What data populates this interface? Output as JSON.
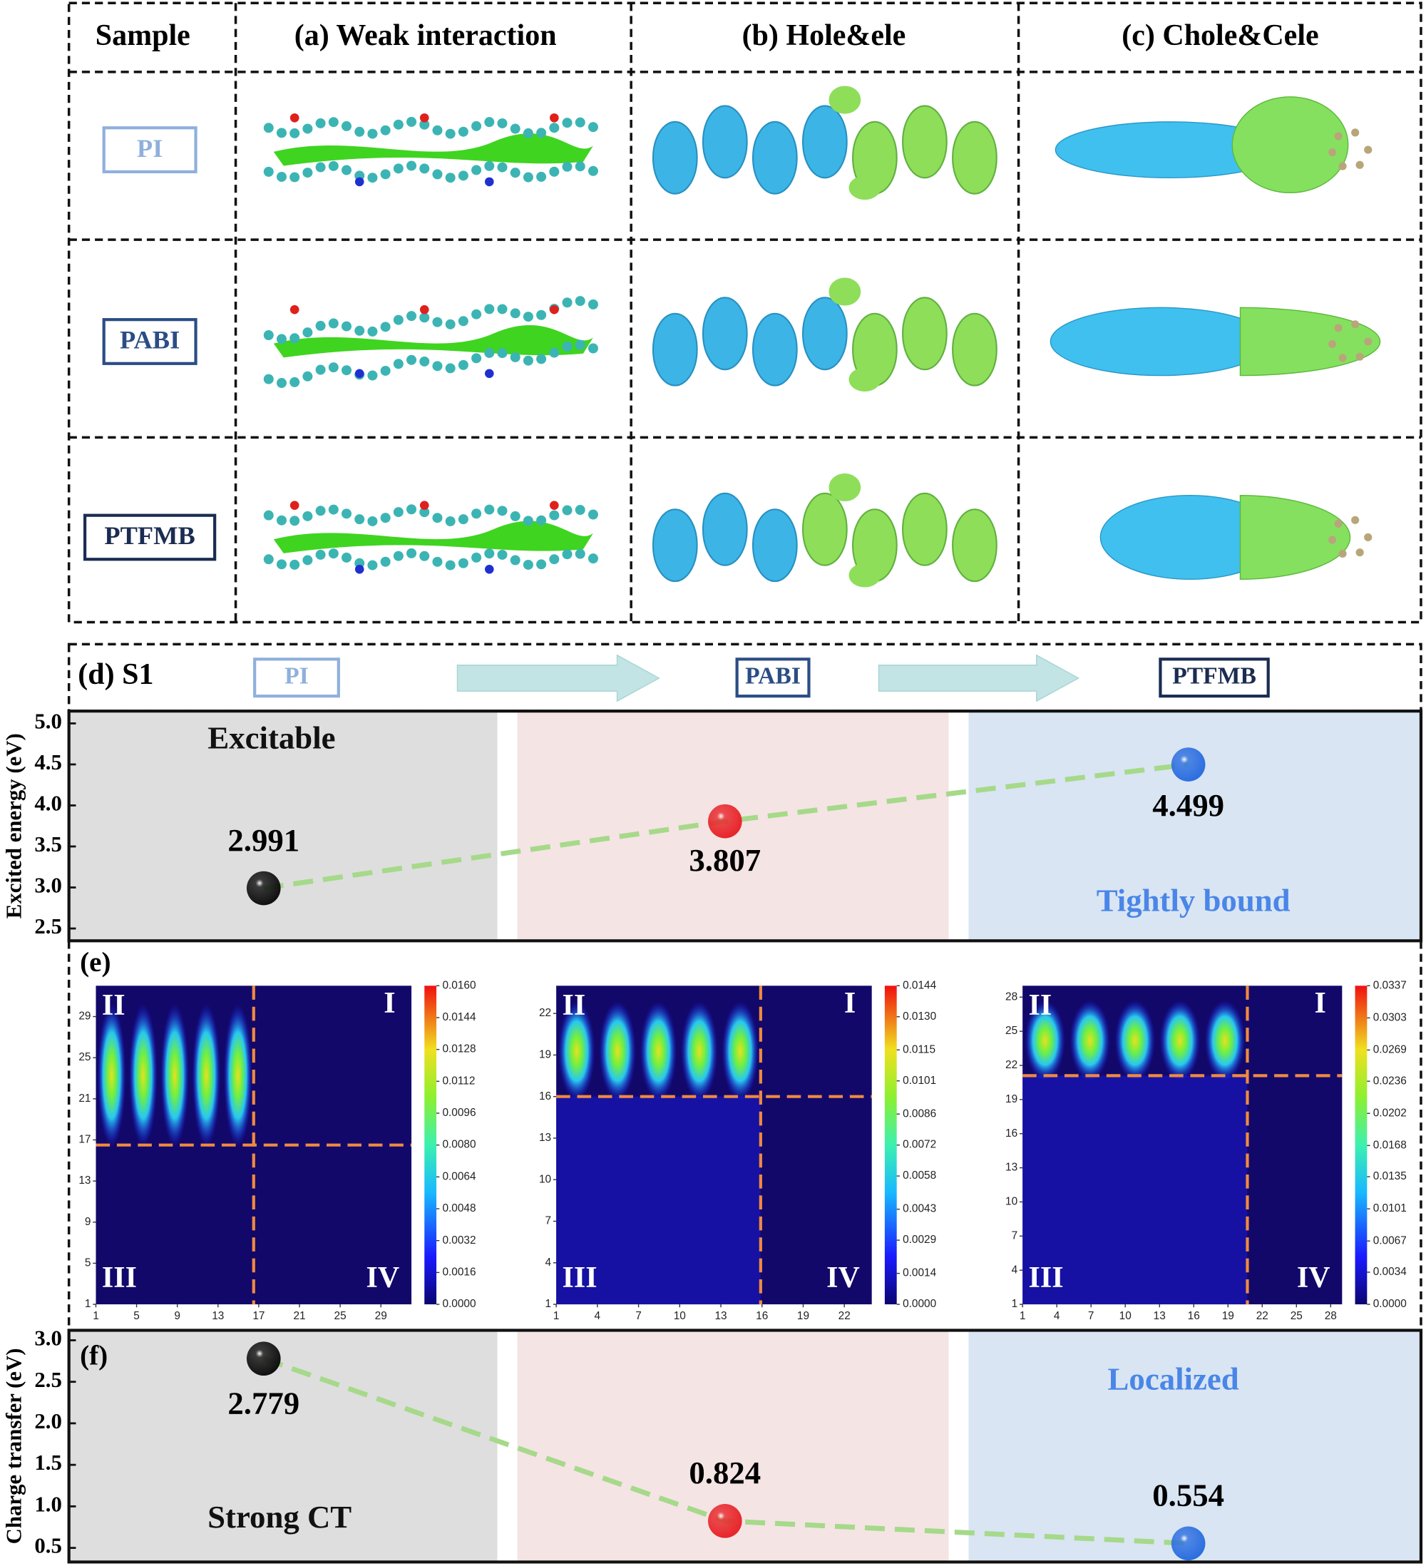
{
  "table": {
    "headers": [
      "Sample",
      "(a) Weak interaction",
      "(b) Hole&ele",
      "(c) Chole&Cele"
    ],
    "samples": [
      "PI",
      "PABI",
      "PTFMB"
    ]
  },
  "panel_e": {
    "label": "(e)"
  },
  "chart_data": [
    {
      "type": "line",
      "label": "(d) S1",
      "y_label": "Excited energy (eV)",
      "categories": [
        "PI",
        "PABI",
        "PTFMB"
      ],
      "values": [
        2.991,
        3.807,
        4.499
      ],
      "color": "#a6d98a",
      "point_colors": [
        "#111111",
        "#e8262b",
        "#2d6fe0"
      ],
      "band_colors": [
        "#dedede",
        "#f4e4e4",
        "#d9e5f2"
      ],
      "annotations": [
        "Excitable",
        "Tightly bound"
      ],
      "ylim": [
        2.35,
        5.15
      ],
      "yticks": [
        2.5,
        {
          "value": 3,
          "label": "3.0"
        },
        3.5,
        {
          "value": 4,
          "label": "4.0"
        },
        4.5,
        {
          "value": 5,
          "label": "5.0"
        }
      ]
    },
    {
      "type": "heatmap",
      "xlim": [
        1,
        32
      ],
      "ylim": [
        1,
        32
      ],
      "xticks": [
        1,
        5,
        9,
        13,
        17,
        21,
        25,
        29
      ],
      "yticks": [
        1,
        5,
        9,
        13,
        17,
        21,
        25,
        29
      ],
      "dividers": {
        "x": 16.5,
        "y": 16.5
      },
      "quadrants": [
        "I",
        "II",
        "III",
        "IV"
      ],
      "colorbar_lim": [
        0,
        0.016
      ],
      "colorbar_ticks": [
        {
          "value": 0,
          "label": "0.0000"
        },
        {
          "value": 0.0016,
          "label": "0.0016"
        },
        {
          "value": 0.0032,
          "label": "0.0032"
        },
        {
          "value": 0.0048,
          "label": "0.0048"
        },
        {
          "value": 0.0064,
          "label": "0.0064"
        },
        {
          "value": 0.008,
          "label": "0.0080"
        },
        {
          "value": 0.0096,
          "label": "0.0096"
        },
        {
          "value": 0.0112,
          "label": "0.0112"
        },
        {
          "value": 0.0128,
          "label": "0.0128"
        },
        {
          "value": 0.0144,
          "label": "0.0144"
        },
        {
          "value": 0.016,
          "label": "0.0160"
        }
      ]
    },
    {
      "type": "heatmap",
      "xlim": [
        1,
        24
      ],
      "ylim": [
        1,
        24
      ],
      "xticks": [
        1,
        4,
        7,
        10,
        13,
        16,
        19,
        22
      ],
      "yticks": [
        1,
        4,
        7,
        10,
        13,
        16,
        19,
        22
      ],
      "dividers": {
        "x": 15.9,
        "y": 16
      },
      "quadrants": [
        "I",
        "II",
        "III",
        "IV"
      ],
      "colorbar_lim": [
        0,
        0.0144
      ],
      "colorbar_ticks": [
        {
          "value": 0,
          "label": "0.0000"
        },
        0.0014,
        0.0029,
        0.0043,
        0.0058,
        0.0072,
        0.0086,
        0.0101,
        0.0115,
        {
          "value": 0.013,
          "label": "0.0130"
        },
        0.0144
      ]
    },
    {
      "type": "heatmap",
      "xlim": [
        1,
        29
      ],
      "ylim": [
        1,
        29
      ],
      "xticks": [
        1,
        4,
        7,
        10,
        13,
        16,
        19,
        22,
        25,
        28
      ],
      "yticks": [
        1,
        4,
        7,
        10,
        13,
        16,
        19,
        22,
        25,
        28
      ],
      "dividers": {
        "x": 20.7,
        "y": 21.1
      },
      "quadrants": [
        "I",
        "II",
        "III",
        "IV"
      ],
      "colorbar_lim": [
        0,
        0.0337
      ],
      "colorbar_ticks": [
        {
          "value": 0,
          "label": "0.0000"
        },
        0.0034,
        0.0067,
        0.0101,
        0.0135,
        0.0168,
        0.0202,
        0.0236,
        0.0269,
        0.0303,
        0.0337
      ]
    },
    {
      "type": "line",
      "label": "(f)",
      "y_label": "Charge transfer (eV)",
      "values": [
        2.779,
        0.824,
        0.554
      ],
      "color": "#a6d98a",
      "point_colors": [
        "#111111",
        "#e8262b",
        "#2d6fe0"
      ],
      "band_colors": [
        "#dedede",
        "#f4e4e4",
        "#d9e5f2"
      ],
      "annotations": [
        "Localized",
        "Strong CT"
      ],
      "ylim": [
        0.33,
        3.12
      ],
      "yticks": [
        0.5,
        {
          "value": 1,
          "label": "1.0"
        },
        1.5,
        {
          "value": 2,
          "label": "2.0"
        },
        2.5,
        {
          "value": 3,
          "label": "3.0"
        }
      ]
    }
  ]
}
